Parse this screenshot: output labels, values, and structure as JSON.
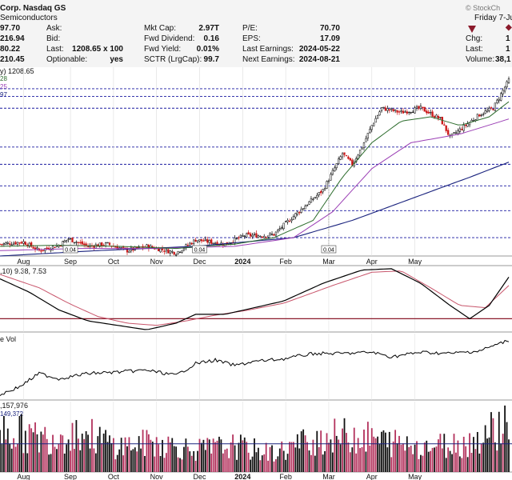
{
  "header": {
    "title": "Corp. Nasdaq GS",
    "sector": "Semiconductors",
    "brand": "© StockCh",
    "date": "Friday 7-Ju",
    "col1_values": [
      "97.70",
      "216.94",
      "80.22",
      "210.45"
    ],
    "quote": [
      {
        "label": "Ask:",
        "value": ""
      },
      {
        "label": "Bid:",
        "value": ""
      },
      {
        "label": "Last:",
        "value": "1208.65 x 100"
      },
      {
        "label": "Optionable:",
        "value": "yes"
      }
    ],
    "fundamentals": [
      {
        "label": "Mkt Cap:",
        "value": "2.97T"
      },
      {
        "label": "Fwd Dividend:",
        "value": "0.16"
      },
      {
        "label": "Fwd Yield:",
        "value": "0.01%"
      },
      {
        "label": "SCTR (LrgCap):",
        "value": "99.7"
      }
    ],
    "earnings": [
      {
        "label": "P/E:",
        "value": "70.70"
      },
      {
        "label": "EPS:",
        "value": "17.09"
      },
      {
        "label": "Last Earnings:",
        "value": "2024-05-22"
      },
      {
        "label": "Next Earnings:",
        "value": "2024-08-21"
      }
    ],
    "right": [
      {
        "label": "Chg:",
        "value": "1"
      },
      {
        "label": "Last:",
        "value": "1"
      },
      {
        "label": "Volume:",
        "value": "38,1"
      }
    ],
    "colors": {
      "down": "#8b1a2b",
      "up": "#2a8a2a"
    }
  },
  "chart_data": [
    {
      "type": "candlestick",
      "legend": [
        "y) 1208.65",
        "28",
        "25",
        "97"
      ],
      "legend_colors": [
        "#000000",
        "#2b6b2b",
        "#9b3fb5",
        "#1a237e"
      ],
      "months": [
        "Aug",
        "Sep",
        "Oct",
        "Nov",
        "Dec",
        "2024",
        "Feb",
        "Mar",
        "Apr",
        "May"
      ],
      "annotations": [
        "0.04",
        "0.04",
        "0.04"
      ],
      "x_range": [
        0,
        260
      ],
      "y_range": [
        395,
        1270
      ],
      "horizontal_levels": [
        1170,
        1135,
        1080,
        900,
        820,
        720,
        605,
        480
      ],
      "close_anchors": [
        [
          0,
          450
        ],
        [
          12,
          460
        ],
        [
          20,
          420
        ],
        [
          30,
          445
        ],
        [
          35,
          475
        ],
        [
          45,
          440
        ],
        [
          55,
          450
        ],
        [
          65,
          420
        ],
        [
          75,
          440
        ],
        [
          90,
          410
        ],
        [
          100,
          470
        ],
        [
          115,
          450
        ],
        [
          125,
          490
        ],
        [
          135,
          490
        ],
        [
          140,
          495
        ],
        [
          150,
          580
        ],
        [
          165,
          700
        ],
        [
          175,
          870
        ],
        [
          180,
          820
        ],
        [
          185,
          900
        ],
        [
          190,
          1000
        ],
        [
          195,
          1080
        ],
        [
          205,
          1060
        ],
        [
          215,
          1080
        ],
        [
          225,
          1030
        ],
        [
          230,
          945
        ],
        [
          235,
          980
        ],
        [
          245,
          1050
        ],
        [
          252,
          1080
        ],
        [
          260,
          1210
        ]
      ],
      "sma_short_anchors": [
        [
          0,
          440
        ],
        [
          30,
          445
        ],
        [
          60,
          440
        ],
        [
          90,
          430
        ],
        [
          120,
          450
        ],
        [
          140,
          480
        ],
        [
          160,
          560
        ],
        [
          175,
          760
        ],
        [
          190,
          920
        ],
        [
          205,
          1020
        ],
        [
          220,
          1040
        ],
        [
          235,
          1000
        ],
        [
          250,
          1040
        ],
        [
          260,
          1110
        ]
      ],
      "sma_mid_anchors": [
        [
          0,
          420
        ],
        [
          40,
          430
        ],
        [
          80,
          430
        ],
        [
          120,
          440
        ],
        [
          150,
          480
        ],
        [
          170,
          600
        ],
        [
          190,
          800
        ],
        [
          210,
          920
        ],
        [
          235,
          960
        ],
        [
          260,
          1030
        ]
      ],
      "sma_long_anchors": [
        [
          0,
          395
        ],
        [
          50,
          420
        ],
        [
          100,
          440
        ],
        [
          150,
          480
        ],
        [
          180,
          560
        ],
        [
          210,
          660
        ],
        [
          240,
          760
        ],
        [
          260,
          830
        ]
      ],
      "colors": {
        "up": "#000000",
        "down": "#cc1a1a",
        "sma_short": "#2b6b2b",
        "sma_mid": "#9b3fb5",
        "sma_long": "#1a237e",
        "levels": "#1a1aa0"
      }
    },
    {
      "type": "line",
      "legend": ",10) 9.38, 7.53",
      "y_range": [
        -3,
        12
      ],
      "reference_level": 0,
      "macd_anchors": [
        [
          0,
          9
        ],
        [
          15,
          6
        ],
        [
          30,
          2
        ],
        [
          45,
          -0.5
        ],
        [
          60,
          -1.5
        ],
        [
          75,
          -2.5
        ],
        [
          90,
          -1
        ],
        [
          100,
          1
        ],
        [
          115,
          1
        ],
        [
          130,
          2.5
        ],
        [
          145,
          4
        ],
        [
          165,
          8
        ],
        [
          185,
          11
        ],
        [
          200,
          11.3
        ],
        [
          215,
          8
        ],
        [
          230,
          3
        ],
        [
          240,
          0
        ],
        [
          250,
          3
        ],
        [
          260,
          9.4
        ]
      ],
      "signal_anchors": [
        [
          0,
          10
        ],
        [
          20,
          7
        ],
        [
          35,
          3.5
        ],
        [
          50,
          0.5
        ],
        [
          65,
          -1
        ],
        [
          80,
          -1.5
        ],
        [
          95,
          -0.5
        ],
        [
          110,
          0.8
        ],
        [
          125,
          1.8
        ],
        [
          145,
          3.5
        ],
        [
          170,
          7.5
        ],
        [
          190,
          10.5
        ],
        [
          205,
          10.8
        ],
        [
          220,
          7
        ],
        [
          235,
          3
        ],
        [
          248,
          2.5
        ],
        [
          260,
          7.5
        ]
      ],
      "colors": {
        "macd": "#000000",
        "signal": "#c8556b",
        "reference": "#8b1a2b"
      }
    },
    {
      "type": "line",
      "legend": "e Vol",
      "y_range": [
        0,
        100
      ],
      "obv_anchors": [
        [
          0,
          92
        ],
        [
          10,
          80
        ],
        [
          20,
          60
        ],
        [
          30,
          68
        ],
        [
          45,
          60
        ],
        [
          60,
          58
        ],
        [
          75,
          55
        ],
        [
          90,
          63
        ],
        [
          100,
          45
        ],
        [
          110,
          40
        ],
        [
          120,
          48
        ],
        [
          130,
          42
        ],
        [
          145,
          38
        ],
        [
          160,
          30
        ],
        [
          175,
          30
        ],
        [
          190,
          28
        ],
        [
          200,
          35
        ],
        [
          215,
          28
        ],
        [
          230,
          30
        ],
        [
          245,
          26
        ],
        [
          260,
          10
        ]
      ],
      "colors": {
        "obv": "#000000"
      }
    },
    {
      "type": "bar",
      "legend": [
        ",157,976",
        "149,372"
      ],
      "legend_colors": [
        "#000000",
        "#1a237e"
      ],
      "months": [
        "Aug",
        "Sep",
        "Oct",
        "Nov",
        "Dec",
        "2024",
        "Feb",
        "Mar",
        "Apr",
        "May"
      ],
      "y_range": [
        0,
        100
      ],
      "volume_anchors": [
        [
          0,
          60
        ],
        [
          20,
          45
        ],
        [
          40,
          55
        ],
        [
          60,
          35
        ],
        [
          80,
          40
        ],
        [
          100,
          30
        ],
        [
          120,
          35
        ],
        [
          140,
          25
        ],
        [
          160,
          45
        ],
        [
          180,
          50
        ],
        [
          200,
          40
        ],
        [
          220,
          35
        ],
        [
          240,
          40
        ],
        [
          260,
          70
        ]
      ],
      "avg_level": 40,
      "colors": {
        "up": "#111111",
        "down": "#b3325d",
        "avg": "#1a237e"
      }
    }
  ]
}
